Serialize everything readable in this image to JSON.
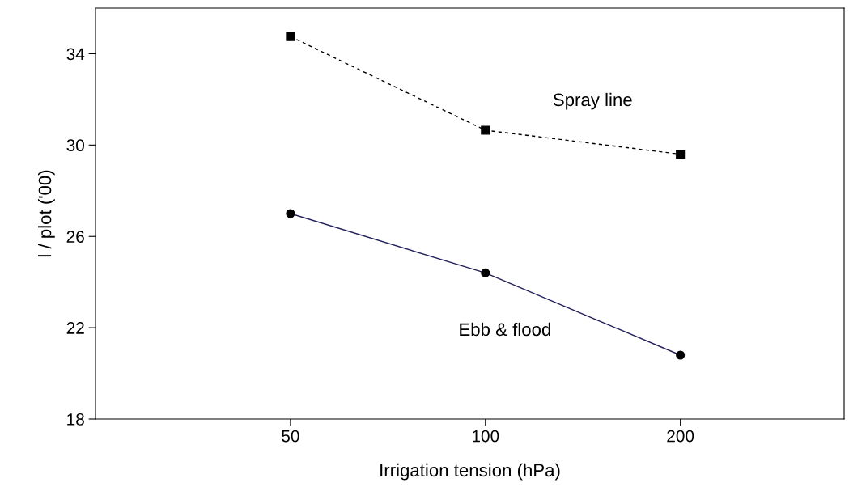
{
  "chart_data": {
    "type": "line",
    "xlabel": "Irrigation tension (hPa)",
    "ylabel": "l / plot ('00)",
    "categories": [
      "50",
      "100",
      "200"
    ],
    "series": [
      {
        "name": "Spray line",
        "color": "#000000",
        "values": [
          34.75,
          30.65,
          29.6
        ],
        "marker": "square",
        "line_style": "dashed"
      },
      {
        "name": "Ebb & flood",
        "color": "#22205a",
        "values": [
          27.0,
          24.4,
          20.8
        ],
        "marker": "circle",
        "line_style": "solid"
      }
    ],
    "ylim": [
      18,
      36
    ],
    "yticks": [
      18,
      22,
      26,
      30,
      34
    ],
    "grid": false,
    "legend": false
  }
}
